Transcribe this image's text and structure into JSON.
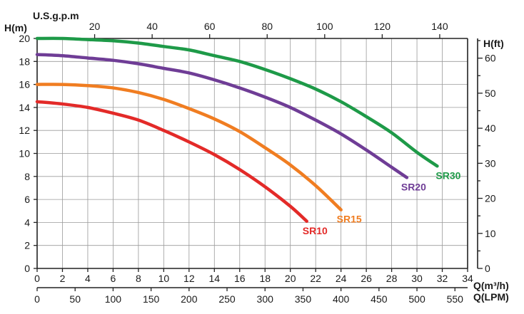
{
  "chart_data": {
    "type": "line",
    "xlabel": "Q(m³/h)",
    "xlabel_bottom": "Q(LPM)",
    "xlabel_top": "U.S.g.p.m",
    "ylabel": "H(m)",
    "ylabel_right": "H(ft)",
    "xlim": [
      0,
      34
    ],
    "ylim": [
      0,
      20
    ],
    "x_ticks": [
      0,
      2,
      4,
      6,
      8,
      10,
      12,
      14,
      16,
      18,
      20,
      22,
      24,
      26,
      28,
      30,
      32,
      34
    ],
    "y_ticks": [
      0,
      2,
      4,
      6,
      8,
      10,
      12,
      14,
      16,
      18,
      20
    ],
    "lpm_ticks": [
      0,
      50,
      100,
      150,
      200,
      250,
      300,
      350,
      400,
      450,
      500,
      550
    ],
    "gpm_ticks": [
      20,
      40,
      60,
      80,
      100,
      120,
      140
    ],
    "ft_ticks": [
      0,
      10,
      20,
      30,
      40,
      50,
      60
    ],
    "grid": true,
    "series": [
      {
        "name": "SR30",
        "color": "#1e9a48",
        "x": [
          0,
          2,
          4,
          6,
          8,
          10,
          12,
          14,
          16,
          18,
          20,
          22,
          24,
          26,
          28,
          30,
          31.6
        ],
        "y": [
          20,
          20,
          19.9,
          19.8,
          19.6,
          19.3,
          19.0,
          18.5,
          18.0,
          17.3,
          16.5,
          15.6,
          14.5,
          13.2,
          11.8,
          10.1,
          8.9
        ]
      },
      {
        "name": "SR20",
        "color": "#6f3d96",
        "x": [
          0,
          2,
          4,
          6,
          8,
          10,
          12,
          14,
          16,
          18,
          20,
          22,
          24,
          26,
          28,
          29.2
        ],
        "y": [
          18.6,
          18.5,
          18.3,
          18.1,
          17.8,
          17.4,
          17.0,
          16.4,
          15.7,
          14.9,
          14.0,
          12.9,
          11.7,
          10.3,
          8.8,
          7.9
        ]
      },
      {
        "name": "SR15",
        "color": "#f07d21",
        "x": [
          0,
          2,
          4,
          6,
          8,
          10,
          12,
          14,
          16,
          18,
          20,
          22,
          24
        ],
        "y": [
          16,
          16,
          15.9,
          15.7,
          15.3,
          14.7,
          13.9,
          13.0,
          11.9,
          10.5,
          9.0,
          7.2,
          5.1
        ]
      },
      {
        "name": "SR10",
        "color": "#e32a28",
        "x": [
          0,
          2,
          4,
          6,
          8,
          10,
          12,
          14,
          16,
          18,
          20,
          21.3
        ],
        "y": [
          14.5,
          14.3,
          14.0,
          13.5,
          12.9,
          12.0,
          11.0,
          9.9,
          8.6,
          7.1,
          5.4,
          4.1
        ]
      }
    ]
  }
}
